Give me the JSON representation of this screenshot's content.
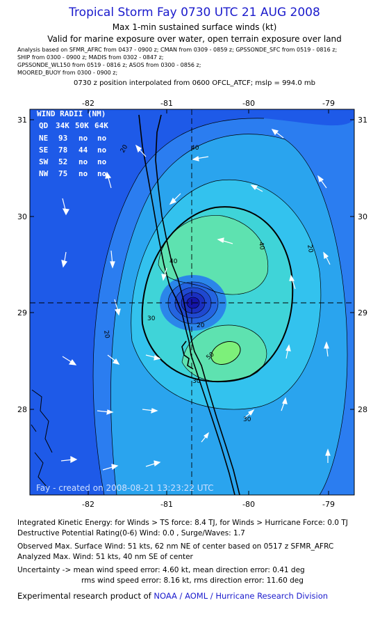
{
  "header": {
    "title": "Tropical Storm Fay 0730 UTC 21 AUG 2008",
    "subtitle1": "Max 1-min sustained surface winds (kt)",
    "subtitle2": "Valid for marine exposure over water, open terrain exposure over land",
    "analysis_lines": [
      "Analysis based on  SFMR_AFRC from 0437 - 0900 z;  CMAN from 0309 - 0859 z;  GPSSONDE_SFC from 0519 - 0816 z;",
      "SHIP from 0300 - 0900 z;   MADIS from 0302 - 0847 z;",
      "GPSSONDE_WL150 from 0519 - 0816 z;  ASOS from 0300 - 0856 z;",
      "MOORED_BUOY from 0300 - 0900 z;"
    ],
    "interp": "0730 z position interpolated from 0600 OFCL_ATCF; mslp = 994.0 mb"
  },
  "map": {
    "lon_ticks": [
      "-82",
      "-81",
      "-80",
      "-79"
    ],
    "lat_ticks": [
      "31",
      "30",
      "29",
      "28"
    ],
    "lon_range": [
      -82.6,
      -78.7
    ],
    "lat_range": [
      27.25,
      31.05
    ],
    "center": {
      "lon": -80.72,
      "lat": 29.1
    },
    "contour_labels": [
      "20",
      "30",
      "40",
      "50",
      "20",
      "30",
      "40",
      "30",
      "20",
      "40",
      "20"
    ],
    "credit": "Fay - created on 2008-08-21 13:23:22 UTC",
    "colors": {
      "outer": "#1e5ae8",
      "mid": "#29b3f0",
      "inner": "#5fe0a8",
      "peak": "#7af07a",
      "land_line": "#000000"
    }
  },
  "wind_radii": {
    "title": "WIND RADII (NM)",
    "header": [
      "QD",
      "34K",
      "50K",
      "64K"
    ],
    "rows": [
      [
        "NE",
        "93",
        "no",
        "no"
      ],
      [
        "SE",
        "78",
        "44",
        "no"
      ],
      [
        "SW",
        "52",
        "no",
        "no"
      ],
      [
        "NW",
        "75",
        "no",
        "no"
      ]
    ]
  },
  "footer": {
    "ike": "Integrated Kinetic Energy:  for Winds > TS force: 8.4 TJ,  for Winds > Hurricane Force: 0.0 TJ",
    "dpr": "Destructive Potential Rating(0-6)   Wind: 0.0 , Surge/Waves: 1.7",
    "obs": "Observed Max. Surface Wind: 51 kts, 62 nm NE of center based on 0517 z SFMR_AFRC",
    "analyzed": "Analyzed Max. Wind: 51 kts, 40 nm SE of center",
    "unc1": "Uncertainty -> mean wind speed error: 4.60 kt,   mean direction error: 0.41 deg",
    "unc2": "rms wind speed error: 8.16 kt,   rms direction error: 11.60 deg",
    "product_prefix": "Experimental research product of",
    "product_link": "NOAA / AOML / Hurricane Research Division"
  }
}
